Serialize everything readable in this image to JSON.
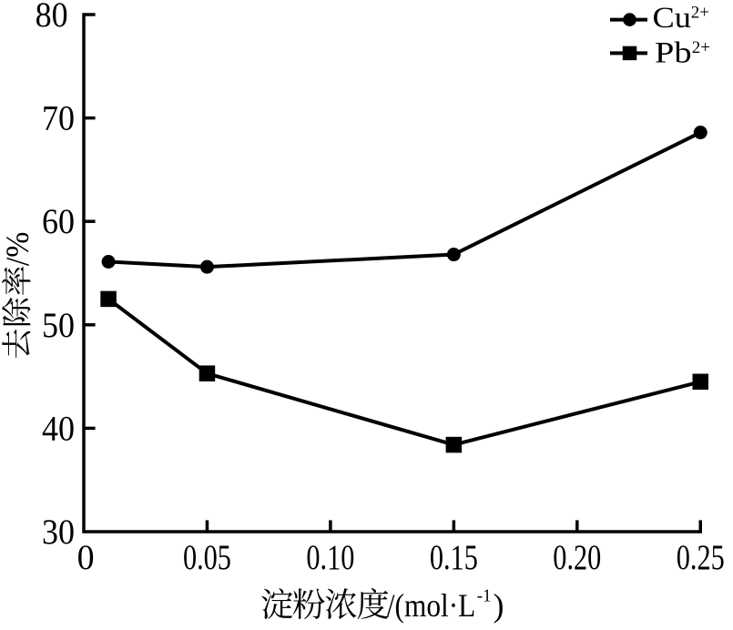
{
  "figure": {
    "background": "#ffffff",
    "foreground": "#000000"
  },
  "chart_data": {
    "type": "line",
    "title": "",
    "xlabel": "淀粉浓度/(mol·L⁻¹)",
    "ylabel": "去除率/%",
    "xlabel_parts": [
      {
        "t": "淀粉浓度",
        "k": "cjk"
      },
      {
        "t": "/(mol·L",
        "k": "text"
      },
      {
        "t": "-1",
        "k": "sup"
      },
      {
        "t": ")",
        "k": "text"
      }
    ],
    "ylabel_parts": [
      {
        "t": "去除率",
        "k": "cjk"
      },
      {
        "t": "/%",
        "k": "text"
      }
    ],
    "xlim": [
      0,
      0.25
    ],
    "ylim": [
      30,
      80
    ],
    "xticks": {
      "values": [
        0,
        0.05,
        0.1,
        0.15,
        0.2,
        0.25
      ],
      "labels": [
        "0",
        "0.05",
        "0.10",
        "0.15",
        "0.20",
        "0.25"
      ]
    },
    "yticks": {
      "values": [
        30,
        40,
        50,
        60,
        70,
        80
      ],
      "labels": [
        "30",
        "40",
        "50",
        "60",
        "70",
        "80"
      ]
    },
    "grid": false,
    "legend_position": "top-right",
    "series": [
      {
        "name": "Cu2+",
        "label": {
          "base": "Cu",
          "sup": "2+",
          "text": "Cu²⁺"
        },
        "marker": "circle",
        "color": "#000000",
        "x": [
          0.01,
          0.05,
          0.15,
          0.25
        ],
        "y": [
          56.1,
          55.6,
          56.8,
          68.6
        ]
      },
      {
        "name": "Pb2+",
        "label": {
          "base": "Pb",
          "sup": "2+",
          "text": "Pb²⁺"
        },
        "marker": "square",
        "color": "#000000",
        "x": [
          0.01,
          0.05,
          0.15,
          0.25
        ],
        "y": [
          52.5,
          45.3,
          38.4,
          44.5
        ]
      }
    ]
  }
}
